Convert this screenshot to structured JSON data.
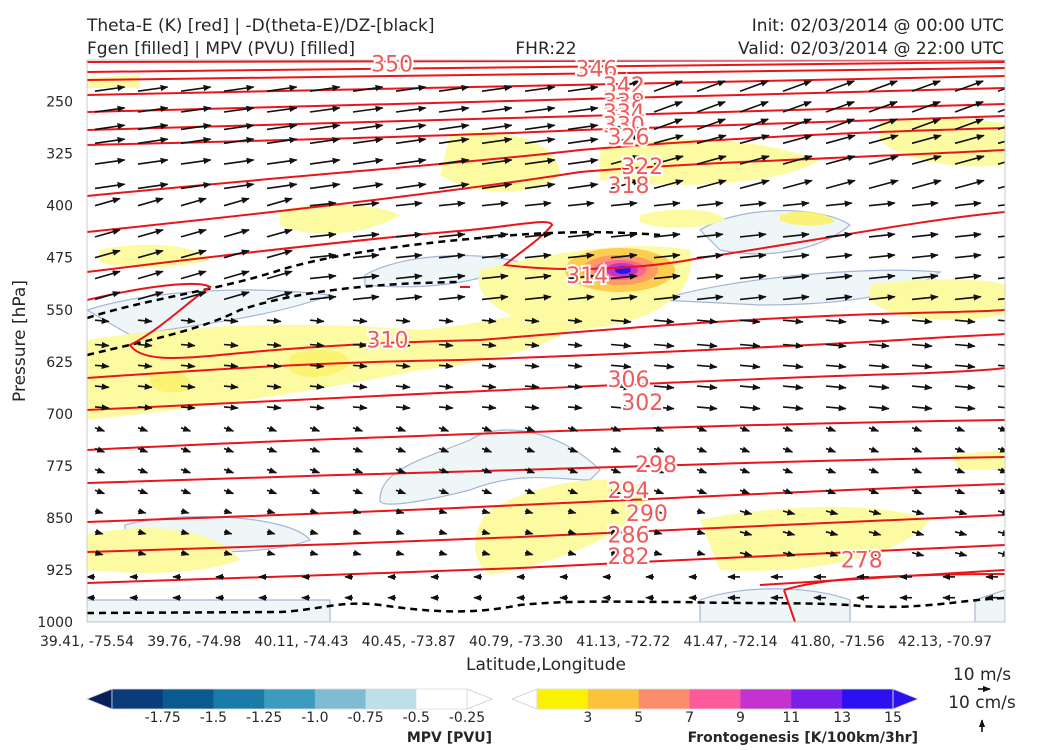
{
  "title": {
    "left_line1": "Theta-E (K) [red] | -D(theta-E)/DZ-[black]",
    "left_line2": "Fgen [filled] | MPV (PVU) [filled]",
    "center": "FHR:22",
    "right_line1": "Init: 02/03/2014 @ 00:00 UTC",
    "right_line2": "Valid: 02/03/2014 @ 22:00 UTC"
  },
  "chart_data": {
    "type": "cross-section",
    "xlabel": "Latitude,Longitude",
    "ylabel": "Pressure [hPa]",
    "x_ticks": [
      "39.41, -75.54",
      "39.76, -74.98",
      "40.11, -74.43",
      "40.45, -73.87",
      "40.79, -73.30",
      "41.13, -72.72",
      "41.47, -72.14",
      "41.80, -71.56",
      "42.13, -70.97"
    ],
    "y_ticks": [
      250,
      325,
      400,
      475,
      550,
      625,
      700,
      775,
      850,
      925,
      1000
    ],
    "ylim": [
      1000,
      190
    ],
    "y_inverted": true,
    "theta_e_contours": {
      "color": "#e8161b",
      "label_color": "#f05a5a",
      "labels": [
        {
          "value": "350",
          "x_frac": 0.06,
          "p": 195
        },
        {
          "value": "346",
          "x_frac": 0.13,
          "p": 202
        },
        {
          "value": "342",
          "x_frac": 0.16,
          "p": 226
        },
        {
          "value": "338",
          "x_frac": 0.16,
          "p": 250
        },
        {
          "value": "334",
          "x_frac": 0.16,
          "p": 265
        },
        {
          "value": "330",
          "x_frac": 0.16,
          "p": 283
        },
        {
          "value": "326",
          "x_frac": 0.165,
          "p": 300
        },
        {
          "value": "322",
          "x_frac": 0.18,
          "p": 343
        },
        {
          "value": "318",
          "x_frac": 0.165,
          "p": 370
        },
        {
          "value": "314",
          "x_frac": 0.12,
          "p": 500
        },
        {
          "value": "310",
          "x_frac": 0.055,
          "p": 593
        },
        {
          "value": "306",
          "x_frac": 0.165,
          "p": 650
        },
        {
          "value": "302",
          "x_frac": 0.18,
          "p": 683
        },
        {
          "value": "298",
          "x_frac": 0.195,
          "p": 772
        },
        {
          "value": "294",
          "x_frac": 0.165,
          "p": 810
        },
        {
          "value": "290",
          "x_frac": 0.185,
          "p": 843
        },
        {
          "value": "286",
          "x_frac": 0.165,
          "p": 874
        },
        {
          "value": "282",
          "x_frac": 0.165,
          "p": 905
        },
        {
          "value": "278",
          "x_frac": 0.795,
          "p": 910
        }
      ]
    },
    "stability_contour": {
      "value": 0,
      "color": "#000000",
      "style": "dashed"
    },
    "mpv_colorbar": {
      "label": "MPV [PVU]",
      "ticks": [
        "-1.75",
        "-1.5",
        "-1.25",
        "-1.0",
        "-0.75",
        "-0.5",
        "-0.25"
      ],
      "colors": [
        "#08205a",
        "#0b3c7a",
        "#0b5a8f",
        "#1a7aa8",
        "#3d9bc0",
        "#7fbcd2",
        "#bcdfe8",
        "#ffffff"
      ],
      "extend": "both"
    },
    "fgen_colorbar": {
      "label": "Frontogenesis [K/100km/3hr]",
      "ticks": [
        "3",
        "5",
        "7",
        "9",
        "11",
        "13",
        "15"
      ],
      "colors": [
        "#ffffff",
        "#fbf200",
        "#fcc23c",
        "#fc8d6a",
        "#fc5a9a",
        "#c433d0",
        "#7a1fe8",
        "#2b10f0"
      ],
      "extend": "both"
    },
    "quiver_key": {
      "label1": "10 m/s",
      "label2": "10 cm/s"
    }
  }
}
